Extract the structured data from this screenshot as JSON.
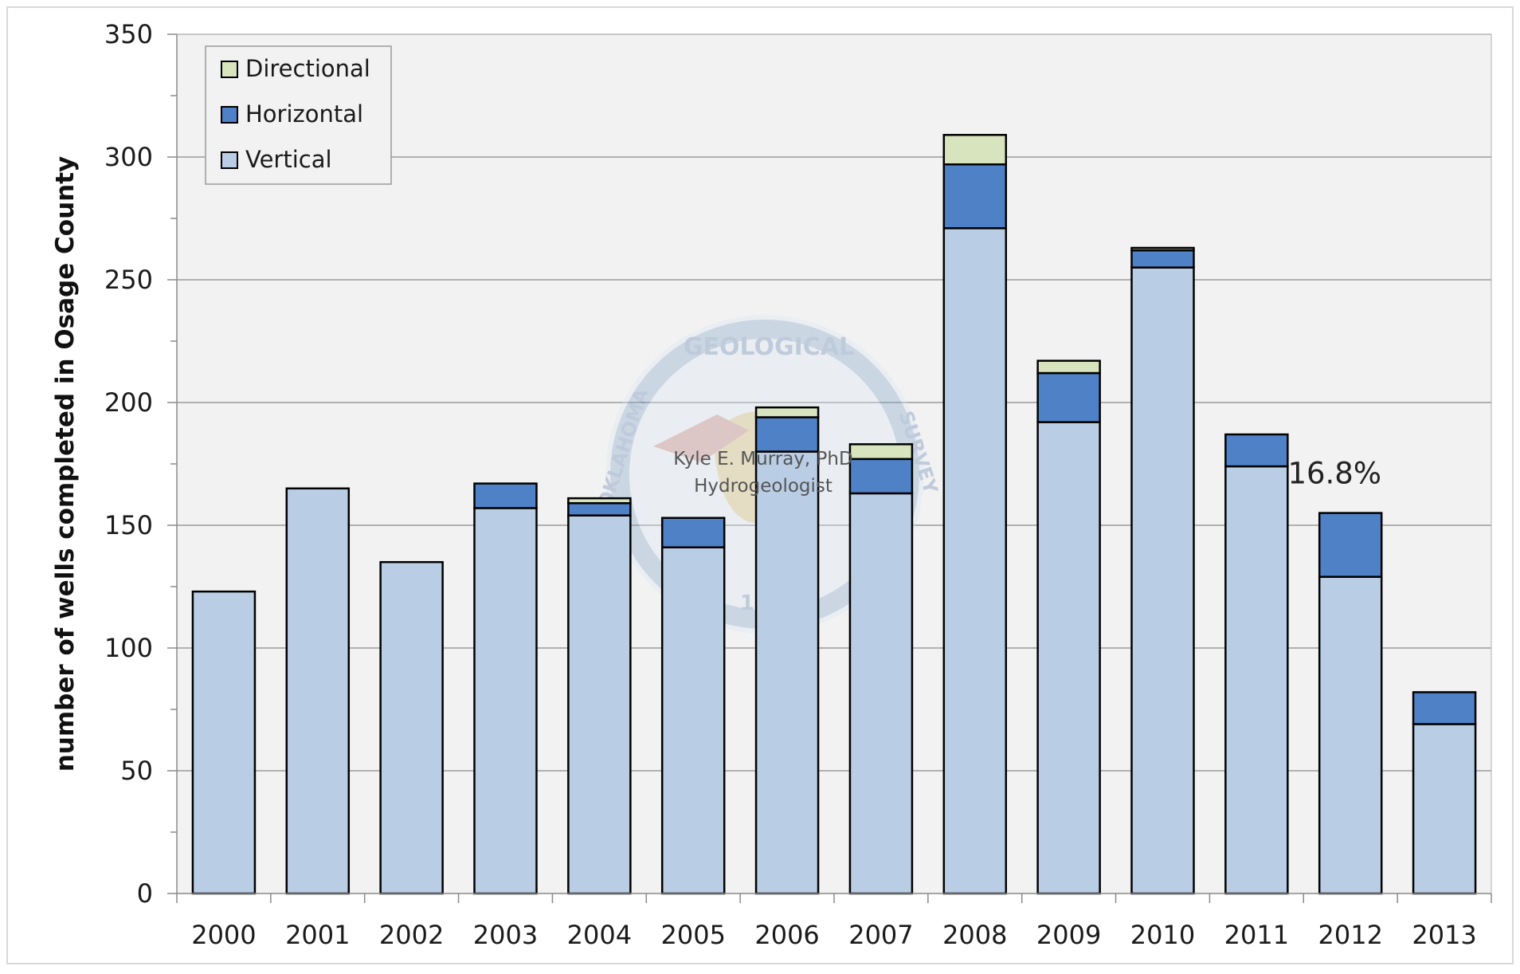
{
  "chart_data": {
    "type": "bar",
    "stacked": true,
    "title": "",
    "xlabel": "",
    "ylabel": "number of wells completed in Osage County",
    "ylim": [
      0,
      350
    ],
    "y_ticks": [
      0,
      50,
      100,
      150,
      200,
      250,
      300,
      350
    ],
    "categories": [
      "2000",
      "2001",
      "2002",
      "2003",
      "2004",
      "2005",
      "2006",
      "2007",
      "2008",
      "2009",
      "2010",
      "2011",
      "2012",
      "2013"
    ],
    "series": [
      {
        "name": "Vertical",
        "color": "#b9cde5",
        "values": [
          123,
          165,
          135,
          157,
          154,
          141,
          180,
          163,
          271,
          192,
          255,
          174,
          129,
          69
        ]
      },
      {
        "name": "Horizontal",
        "color": "#4f81c7",
        "values": [
          0,
          0,
          0,
          10,
          5,
          12,
          14,
          14,
          26,
          20,
          7,
          13,
          26,
          13
        ]
      },
      {
        "name": "Directional",
        "color": "#d7e4bd",
        "values": [
          0,
          0,
          0,
          0,
          2,
          0,
          4,
          6,
          12,
          5,
          1,
          0,
          0,
          0
        ]
      }
    ],
    "legend": {
      "position": "top-left",
      "entries": [
        "Directional",
        "Horizontal",
        "Vertical"
      ]
    },
    "grid": true,
    "annotations": [
      {
        "text": "16.8%",
        "category": "2012",
        "y": 167
      }
    ],
    "watermark": {
      "lines": [
        "Kyle E. Murray, PhD",
        "Hydrogeologist"
      ],
      "seal_text": [
        "GEOLOGICAL",
        "SURVEY",
        "OKLAHOMA",
        "1908"
      ]
    }
  }
}
